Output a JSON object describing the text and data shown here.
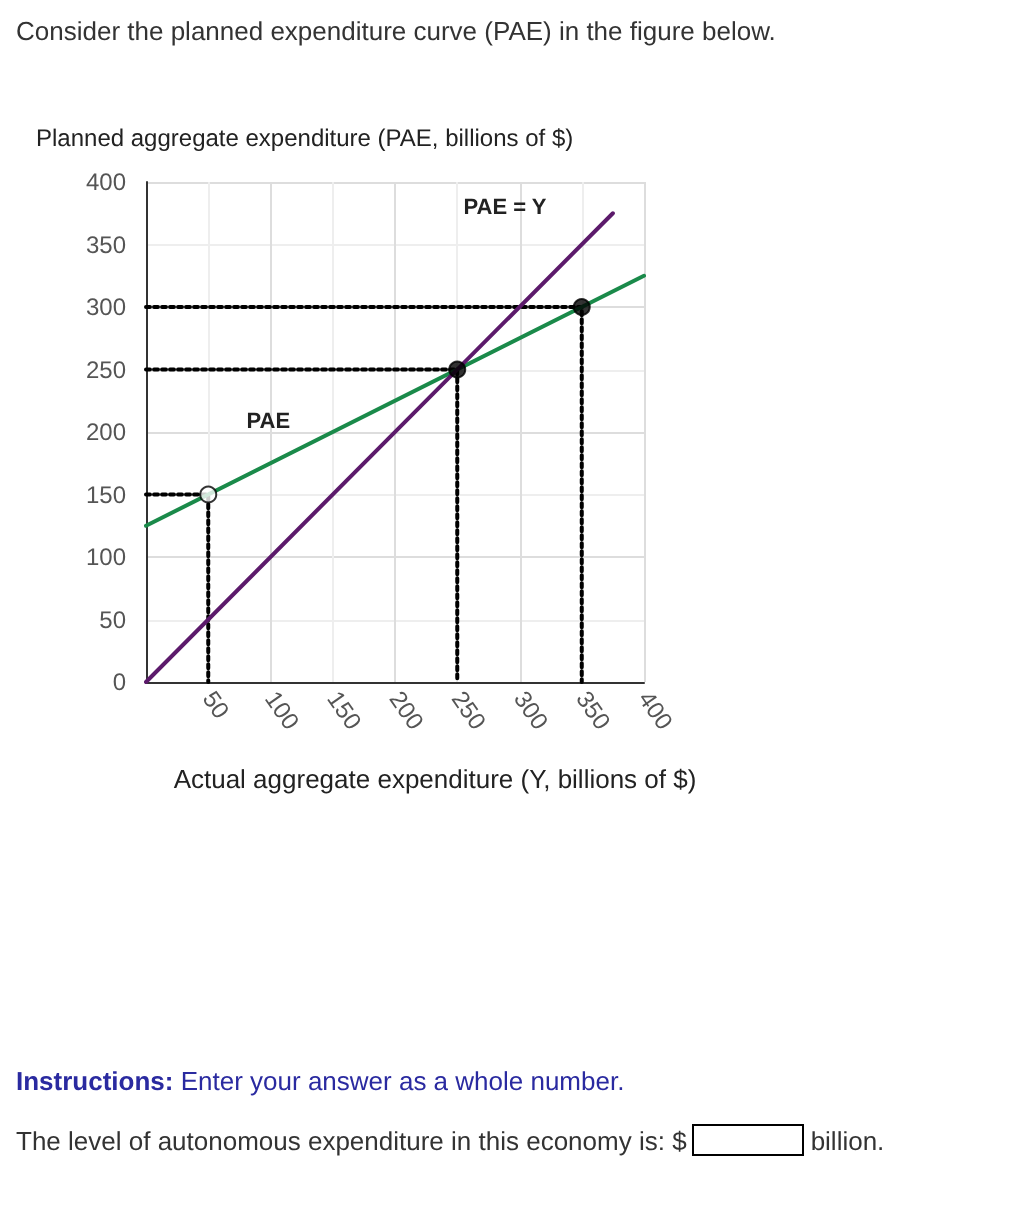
{
  "chart_data": {
    "type": "line",
    "title": "Consider the planned expenditure curve (PAE) in the figure below.",
    "ylabel": "Planned aggregate expenditure (PAE, billions of $)",
    "xlabel": "Actual aggregate expenditure (Y, billions of $)",
    "xlim": [
      0,
      400
    ],
    "xticks": [
      {
        "value": 0,
        "label": null
      },
      50,
      100,
      150,
      200,
      250,
      300,
      350,
      400
    ],
    "ylim": [
      0,
      400
    ],
    "yticks": [
      0,
      50,
      100,
      150,
      200,
      250,
      300,
      350,
      400
    ],
    "grid": true,
    "series": [
      {
        "type": "line",
        "color": "#000000",
        "line_style": "dotted",
        "marker": "none",
        "x": [
          0,
          50,
          50
        ],
        "values": [
          150,
          150,
          0
        ]
      },
      {
        "type": "line",
        "color": "#000000",
        "line_style": "dotted",
        "marker": "none",
        "x": [
          0,
          250,
          250
        ],
        "values": [
          250,
          250,
          0
        ]
      },
      {
        "type": "line",
        "color": "#000000",
        "line_style": "dotted",
        "marker": "none",
        "x": [
          0,
          350,
          350
        ],
        "values": [
          300,
          300,
          0
        ]
      },
      {
        "name": "PAE",
        "color": "#1a8a4a",
        "line_style": "solid",
        "marker": "none",
        "x": [
          0,
          400
        ],
        "values": [
          125,
          325
        ]
      },
      {
        "name": "PAE = Y",
        "color": "#5c1a6b",
        "line_style": "solid",
        "marker": "none",
        "x": [
          0,
          375
        ],
        "values": [
          0,
          375
        ]
      },
      {
        "type": "scatter",
        "color": "#ffffff",
        "marker": "circle",
        "x": [
          50
        ],
        "values": [
          150
        ]
      },
      {
        "type": "scatter",
        "color": "#000000",
        "marker": "circle",
        "x": [
          250,
          350
        ],
        "values": [
          250,
          300
        ]
      }
    ],
    "annotations": [
      "Instructions:",
      "Enter your answer as a whole number.",
      "The level of autonomous expenditure in this economy is: $",
      "billion."
    ]
  }
}
